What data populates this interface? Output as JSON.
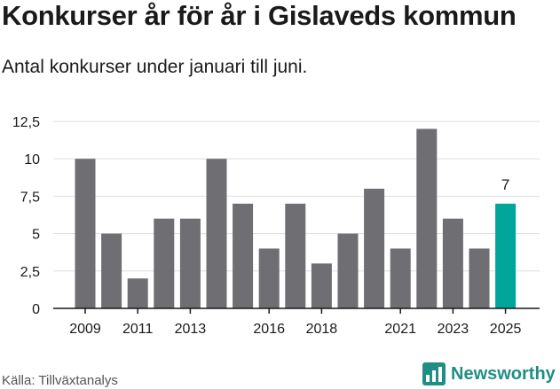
{
  "title": "Konkurser år för år i Gislaveds kommun",
  "subtitle": "Antal konkurser under januari till juni.",
  "source": "Källa: Tillväxtanalys",
  "brand": {
    "name": "Newsworthy",
    "logo_icon": "bar-chart-logo-icon",
    "color": "#1f8f86"
  },
  "chart_data": {
    "type": "bar",
    "categories": [
      "2009",
      "2010",
      "2011",
      "2012",
      "2013",
      "2014",
      "2015",
      "2016",
      "2017",
      "2018",
      "2019",
      "2020",
      "2021",
      "2022",
      "2023",
      "2024",
      "2025"
    ],
    "values": [
      10,
      5,
      2,
      6,
      6,
      10,
      7,
      4,
      7,
      3,
      5,
      8,
      4,
      12,
      6,
      4,
      7
    ],
    "x_tick_labels": [
      "2009",
      "2011",
      "2013",
      "2016",
      "2018",
      "2021",
      "2023",
      "2025"
    ],
    "y_ticks": [
      0,
      2.5,
      5,
      7.5,
      10,
      12.5
    ],
    "y_tick_labels": [
      "0",
      "2,5",
      "5",
      "7,5",
      "10",
      "12,5"
    ],
    "ylim": [
      0,
      12.5
    ],
    "grid": true,
    "colors": {
      "bar": "#6f6e73",
      "highlight": "#00a699",
      "grid": "#dddddd",
      "axis": "#1a1a1a"
    },
    "highlight_category": "2025",
    "data_labels": [
      {
        "category": "2025",
        "text": "7"
      }
    ]
  }
}
